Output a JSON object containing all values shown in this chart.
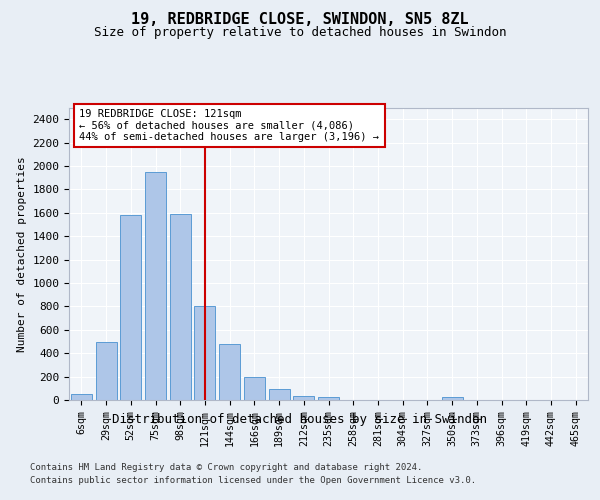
{
  "title1": "19, REDBRIDGE CLOSE, SWINDON, SN5 8ZL",
  "title2": "Size of property relative to detached houses in Swindon",
  "xlabel": "Distribution of detached houses by size in Swindon",
  "ylabel": "Number of detached properties",
  "categories": [
    "6sqm",
    "29sqm",
    "52sqm",
    "75sqm",
    "98sqm",
    "121sqm",
    "144sqm",
    "166sqm",
    "189sqm",
    "212sqm",
    "235sqm",
    "258sqm",
    "281sqm",
    "304sqm",
    "327sqm",
    "350sqm",
    "373sqm",
    "396sqm",
    "419sqm",
    "442sqm",
    "465sqm"
  ],
  "bar_values": [
    55,
    500,
    1580,
    1950,
    1590,
    800,
    475,
    195,
    90,
    35,
    28,
    0,
    0,
    0,
    0,
    22,
    0,
    0,
    0,
    0,
    0
  ],
  "highlight_index": 5,
  "bar_color": "#aec6e8",
  "bar_edge_color": "#5b9bd5",
  "vline_color": "#cc0000",
  "annotation_text": "19 REDBRIDGE CLOSE: 121sqm\n← 56% of detached houses are smaller (4,086)\n44% of semi-detached houses are larger (3,196) →",
  "annotation_box_color": "#ffffff",
  "annotation_border_color": "#cc0000",
  "ylim": [
    0,
    2500
  ],
  "yticks": [
    0,
    200,
    400,
    600,
    800,
    1000,
    1200,
    1400,
    1600,
    1800,
    2000,
    2200,
    2400
  ],
  "footer1": "Contains HM Land Registry data © Crown copyright and database right 2024.",
  "footer2": "Contains public sector information licensed under the Open Government Licence v3.0.",
  "bg_color": "#e8eef5",
  "plot_bg_color": "#f0f4f9"
}
